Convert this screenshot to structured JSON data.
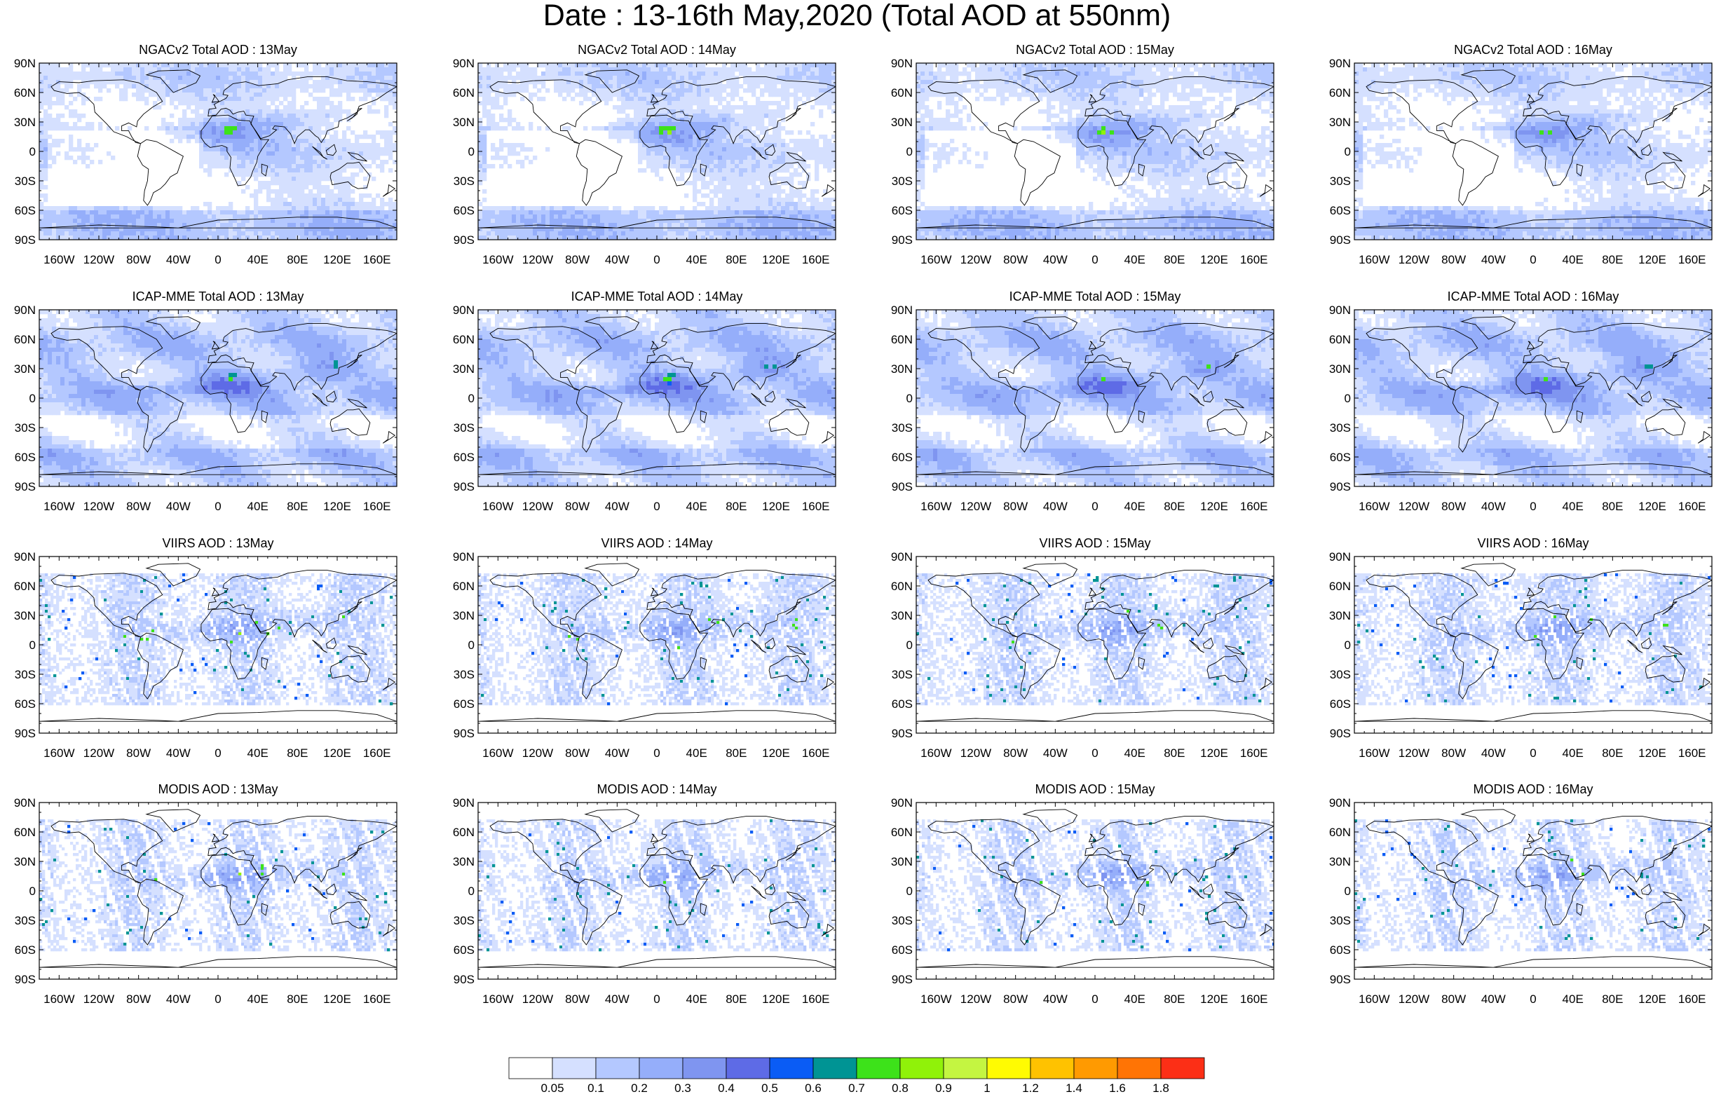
{
  "title": "Date : 13-16th May,2020 (Total AOD at 550nm)",
  "lat_labels": [
    "90N",
    "60N",
    "30N",
    "0",
    "30S",
    "60S",
    "90S"
  ],
  "lon_labels": [
    "160W",
    "120W",
    "80W",
    "40W",
    "0",
    "40E",
    "80E",
    "120E",
    "160E"
  ],
  "rows": [
    {
      "model": "NGACv2",
      "style": "smooth-dust",
      "titles": [
        "NGACv2 Total AOD : 13May",
        "NGACv2 Total AOD : 14May",
        "NGACv2 Total AOD : 15May",
        "NGACv2 Total AOD : 16May"
      ]
    },
    {
      "model": "ICAP-MME",
      "style": "smooth-blue",
      "titles": [
        "ICAP-MME Total AOD : 13May",
        "ICAP-MME Total AOD : 14May",
        "ICAP-MME Total AOD : 15May",
        "ICAP-MME Total AOD : 16May"
      ]
    },
    {
      "model": "VIIRS",
      "style": "satellite",
      "titles": [
        "VIIRS AOD : 13May",
        "VIIRS AOD : 14May",
        "VIIRS AOD : 15May",
        "VIIRS AOD : 16May"
      ]
    },
    {
      "model": "MODIS",
      "style": "satellite-swath",
      "titles": [
        "MODIS AOD : 13May",
        "MODIS AOD : 14May",
        "MODIS AOD : 15May",
        "MODIS AOD : 16May"
      ]
    }
  ],
  "colorbar": {
    "labels": [
      "0.05",
      "0.1",
      "0.2",
      "0.3",
      "0.4",
      "0.5",
      "0.6",
      "0.7",
      "0.8",
      "0.9",
      "1",
      "1.2",
      "1.4",
      "1.6",
      "1.8"
    ],
    "colors": [
      "#ffffff",
      "#d5e0ff",
      "#b4c8ff",
      "#95aefa",
      "#7f95f0",
      "#5e6be6",
      "#0a5cf5",
      "#009494",
      "#3de21a",
      "#90f209",
      "#c4f541",
      "#fffb02",
      "#ffc200",
      "#ff9a01",
      "#ff7405",
      "#fc2f16"
    ]
  }
}
